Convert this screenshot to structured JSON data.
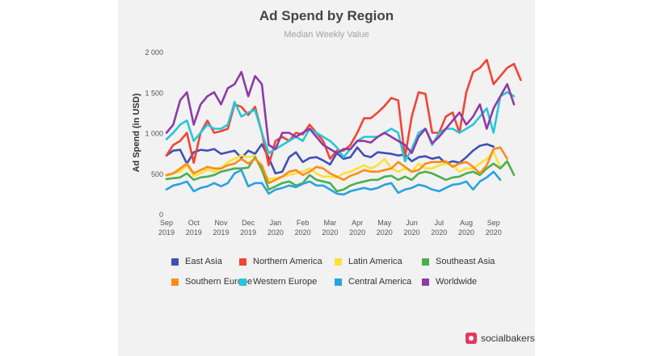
{
  "chart_data": {
    "type": "line",
    "title": "Ad Spend by Region",
    "subtitle": "Median Weekly Value",
    "ylabel": "Ad Spend (in USD)",
    "xlabel": "",
    "ylim": [
      0,
      2000
    ],
    "yticks": [
      0,
      500,
      1000,
      1500,
      2000
    ],
    "ytick_labels": [
      "0",
      "500",
      "1 000",
      "1 500",
      "2 000"
    ],
    "xticks": [
      {
        "line1": "Sep",
        "line2": "2019",
        "week": 0
      },
      {
        "line1": "Oct",
        "line2": "2019",
        "week": 4
      },
      {
        "line1": "Nov",
        "line2": "2019",
        "week": 8
      },
      {
        "line1": "Dec",
        "line2": "2019",
        "week": 12
      },
      {
        "line1": "Jan",
        "line2": "2020",
        "week": 16
      },
      {
        "line1": "Feb",
        "line2": "2020",
        "week": 20
      },
      {
        "line1": "Mar",
        "line2": "2020",
        "week": 24
      },
      {
        "line1": "Apr",
        "line2": "2020",
        "week": 28
      },
      {
        "line1": "May",
        "line2": "2020",
        "week": 32
      },
      {
        "line1": "Jun",
        "line2": "2020",
        "week": 36
      },
      {
        "line1": "Jul",
        "line2": "2020",
        "week": 40
      },
      {
        "line1": "Aug",
        "line2": "2020",
        "week": 44
      },
      {
        "line1": "Sep",
        "line2": "2020",
        "week": 48
      }
    ],
    "grid": false,
    "legend_position": "bottom",
    "series": [
      {
        "name": "East Asia",
        "color": "#3f51b5",
        "values": [
          720,
          780,
          790,
          620,
          760,
          790,
          780,
          800,
          740,
          760,
          780,
          690,
          780,
          740,
          860,
          690,
          500,
          520,
          700,
          760,
          640,
          690,
          700,
          660,
          610,
          750,
          680,
          700,
          820,
          720,
          700,
          760,
          750,
          740,
          720,
          730,
          650,
          700,
          710,
          680,
          700,
          620,
          650,
          630,
          700,
          780,
          840,
          860,
          830
        ]
      },
      {
        "name": "Northern America",
        "color": "#f44336",
        "values": [
          720,
          850,
          900,
          1000,
          630,
          1000,
          1150,
          1000,
          1020,
          1050,
          1350,
          1320,
          1220,
          1320,
          1000,
          600,
          900,
          950,
          900,
          1000,
          980,
          1100,
          1000,
          900,
          680,
          780,
          780,
          850,
          1000,
          1180,
          1180,
          1250,
          1330,
          1430,
          1400,
          700,
          1200,
          1500,
          1480,
          1000,
          1000,
          1200,
          1250,
          1000,
          1500,
          1750,
          1800,
          1900,
          1600,
          1700,
          1800,
          1850,
          1650
        ]
      },
      {
        "name": "Latin America",
        "color": "#ffe135",
        "values": [
          470,
          500,
          520,
          600,
          470,
          500,
          550,
          520,
          560,
          640,
          680,
          720,
          700,
          720,
          520,
          430,
          440,
          460,
          480,
          500,
          520,
          560,
          500,
          460,
          460,
          450,
          500,
          520,
          560,
          600,
          560,
          600,
          680,
          560,
          520,
          560,
          520,
          620,
          560,
          560,
          600,
          620,
          600,
          520,
          560,
          560,
          620,
          680,
          760,
          580
        ]
      },
      {
        "name": "Southeast Asia",
        "color": "#4caf50",
        "values": [
          430,
          440,
          450,
          500,
          420,
          450,
          460,
          480,
          520,
          540,
          560,
          560,
          570,
          700,
          550,
          300,
          340,
          380,
          400,
          350,
          380,
          480,
          420,
          400,
          380,
          280,
          300,
          350,
          380,
          400,
          420,
          420,
          460,
          470,
          420,
          460,
          420,
          500,
          520,
          500,
          460,
          420,
          450,
          460,
          500,
          520,
          480,
          560,
          620,
          560,
          650,
          480
        ]
      },
      {
        "name": "Southern Europe",
        "color": "#ff8c1a",
        "values": [
          480,
          500,
          560,
          620,
          500,
          540,
          580,
          560,
          560,
          600,
          620,
          680,
          620,
          680,
          600,
          380,
          420,
          460,
          520,
          540,
          480,
          520,
          580,
          560,
          500,
          460,
          420,
          470,
          500,
          540,
          520,
          520,
          540,
          560,
          640,
          580,
          520,
          540,
          620,
          640,
          640,
          650,
          580,
          620,
          640,
          580,
          500,
          600,
          800,
          820,
          680
        ]
      },
      {
        "name": "Western Europe",
        "color": "#26c6da",
        "values": [
          920,
          1000,
          1100,
          1150,
          900,
          1000,
          1100,
          1050,
          1050,
          1100,
          1380,
          1200,
          1250,
          1280,
          1000,
          750,
          800,
          850,
          900,
          950,
          900,
          1050,
          1000,
          950,
          900,
          820,
          700,
          800,
          900,
          950,
          950,
          950,
          1000,
          1050,
          1000,
          650,
          800,
          1000,
          1050,
          850,
          1000,
          1050,
          1050,
          1000,
          1050,
          1100,
          1200,
          1300,
          1000,
          1450,
          1500,
          1450
        ]
      },
      {
        "name": "Central America",
        "color": "#29a3e0",
        "values": [
          300,
          350,
          370,
          400,
          280,
          320,
          340,
          380,
          340,
          380,
          500,
          540,
          340,
          380,
          380,
          250,
          300,
          320,
          350,
          330,
          370,
          400,
          350,
          350,
          300,
          250,
          240,
          280,
          300,
          320,
          300,
          320,
          360,
          380,
          260,
          300,
          320,
          360,
          340,
          300,
          280,
          320,
          360,
          370,
          400,
          300,
          400,
          450,
          520,
          420
        ]
      },
      {
        "name": "Worldwide",
        "color": "#8e3aa8",
        "values": [
          1000,
          1100,
          1400,
          1500,
          1100,
          1350,
          1450,
          1500,
          1350,
          1550,
          1600,
          1750,
          1450,
          1700,
          1600,
          850,
          800,
          1000,
          1000,
          950,
          1000,
          1050,
          950,
          850,
          800,
          750,
          800,
          800,
          900,
          900,
          880,
          950,
          1000,
          950,
          900,
          850,
          750,
          950,
          1050,
          870,
          950,
          1050,
          1150,
          1250,
          1100,
          1200,
          1350,
          1050,
          1300,
          1450,
          1600,
          1350
        ]
      }
    ]
  },
  "brand": {
    "name": "socialbakers"
  }
}
